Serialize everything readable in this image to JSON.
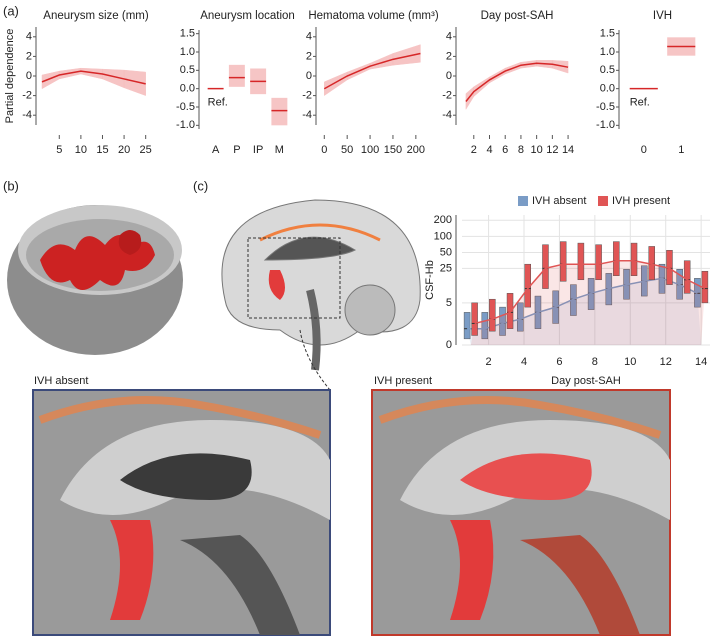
{
  "panel_labels": [
    "(a)",
    "(b)",
    "(c)"
  ],
  "images": {
    "left_title": "IVH absent",
    "right_title": "IVH present"
  },
  "chart_data": [
    {
      "type": "line",
      "title": "Aneurysm size (mm)",
      "ylabel": "Partial dependence",
      "color": "#d62728",
      "ribbon_color": "#f4b6b6",
      "x": [
        1,
        5,
        10,
        15,
        20,
        25
      ],
      "values": [
        -0.6,
        0.1,
        0.5,
        0.2,
        -0.3,
        -0.8
      ],
      "lower": [
        -1.3,
        -0.3,
        0.2,
        -0.3,
        -1.2,
        -2.0
      ],
      "upper": [
        0.1,
        0.5,
        0.8,
        0.7,
        0.6,
        0.4
      ],
      "xlim": [
        1,
        26
      ],
      "xticks": [
        5,
        10,
        15,
        20,
        25
      ],
      "ylim": [
        -5,
        5
      ],
      "yticks": [
        4,
        2,
        0,
        -2,
        -4
      ]
    },
    {
      "type": "crossbar",
      "title": "Aneurysm location",
      "annotation": "Ref.",
      "color": "#d62728",
      "ribbon_color": "#f4b6b6",
      "categories": [
        "A",
        "P",
        "IP",
        "M"
      ],
      "values": [
        0,
        0.3,
        0.2,
        -0.6
      ],
      "lower": [
        0,
        0.05,
        -0.15,
        -1.0
      ],
      "upper": [
        0,
        0.65,
        0.55,
        -0.25
      ],
      "ylim": [
        -1.1,
        1.6
      ],
      "yticks": [
        {
          "value": 1.5,
          "label": "1.5"
        },
        {
          "value": 1,
          "label": "1.0"
        },
        {
          "value": 0.5,
          "label": "0.5"
        },
        {
          "value": 0,
          "label": "0.0"
        },
        {
          "value": -0.5,
          "label": "-0.5"
        },
        {
          "value": -1,
          "label": "-1.0"
        }
      ]
    },
    {
      "type": "line",
      "title": "Hematoma volume (mm³)",
      "color": "#d62728",
      "ribbon_color": "#f4b6b6",
      "x": [
        0,
        50,
        100,
        150,
        210
      ],
      "values": [
        -1.3,
        0,
        1.0,
        1.7,
        2.3
      ],
      "lower": [
        -2.0,
        -0.4,
        0.7,
        1.1,
        1.4
      ],
      "upper": [
        -0.6,
        0.4,
        1.3,
        2.3,
        3.2
      ],
      "xlim": [
        -5,
        220
      ],
      "xticks": [
        0,
        50,
        100,
        150,
        200
      ],
      "ylim": [
        -5,
        5
      ],
      "yticks": [
        4,
        2,
        0,
        -2,
        -4
      ]
    },
    {
      "type": "line",
      "title": "Day post-SAH",
      "color": "#d62728",
      "ribbon_color": "#f4b6b6",
      "x": [
        1,
        2,
        4,
        6,
        8,
        10,
        12,
        14
      ],
      "values": [
        -2.6,
        -1.6,
        -0.4,
        0.5,
        1.1,
        1.3,
        1.2,
        0.9
      ],
      "lower": [
        -3.4,
        -2.1,
        -0.7,
        0.2,
        0.8,
        1.0,
        0.8,
        0.3
      ],
      "upper": [
        -1.8,
        -1.1,
        -0.1,
        0.8,
        1.4,
        1.6,
        1.6,
        1.5
      ],
      "xlim": [
        0.5,
        14.5
      ],
      "xticks": [
        2,
        4,
        6,
        8,
        10,
        12,
        14
      ],
      "ylim": [
        -5,
        5
      ],
      "yticks": [
        4,
        2,
        0,
        -2,
        -4
      ]
    },
    {
      "type": "crossbar",
      "title": "IVH",
      "annotation": "Ref.",
      "color": "#d62728",
      "ribbon_color": "#f4b6b6",
      "categories": [
        "0",
        "1"
      ],
      "values": [
        0,
        1.15
      ],
      "lower": [
        0,
        0.9
      ],
      "upper": [
        0,
        1.4
      ],
      "ylim": [
        -1.1,
        1.6
      ],
      "yticks": [
        {
          "value": 1.5,
          "label": "1.5"
        },
        {
          "value": 1,
          "label": "1.0"
        },
        {
          "value": 0.5,
          "label": "0.5"
        },
        {
          "value": 0,
          "label": "0.0"
        },
        {
          "value": -0.5,
          "label": "-0.5"
        },
        {
          "value": -1,
          "label": "-1.0"
        }
      ]
    },
    {
      "type": "box",
      "ylabel": "CSF-Hb",
      "xlabel": "Day post-SAH",
      "yscale": "log1p",
      "grid": true,
      "x": [
        1,
        2,
        3,
        4,
        5,
        6,
        7,
        8,
        9,
        10,
        11,
        12,
        13,
        14
      ],
      "xlim": [
        0.5,
        14.5
      ],
      "xticks": [
        2,
        4,
        6,
        8,
        10,
        12,
        14
      ],
      "ylim": [
        0,
        250
      ],
      "yticks": [
        0,
        5,
        25,
        50,
        100,
        200
      ],
      "series": [
        {
          "name": "IVH absent",
          "color": "#7a9cc6",
          "values": [
            1,
            1,
            1.5,
            2,
            3,
            4,
            6,
            8,
            10,
            12,
            14,
            16,
            12,
            8
          ],
          "q1": [
            0.3,
            0.3,
            0.5,
            0.8,
            1,
            1.5,
            2.5,
            3.5,
            4.5,
            6,
            7,
            8,
            6,
            4
          ],
          "q3": [
            3,
            3,
            4,
            5,
            7,
            9,
            12,
            16,
            20,
            24,
            28,
            30,
            24,
            16
          ]
        },
        {
          "name": "IVH present",
          "color": "#e05555",
          "values": [
            1.5,
            2,
            3,
            10,
            25,
            30,
            30,
            30,
            35,
            35,
            30,
            25,
            15,
            10
          ],
          "q1": [
            0.5,
            0.8,
            1,
            4,
            10,
            14,
            15,
            15,
            18,
            18,
            15,
            12,
            8,
            5
          ],
          "q3": [
            5,
            6,
            8,
            30,
            70,
            80,
            75,
            70,
            80,
            75,
            65,
            55,
            35,
            22
          ]
        }
      ]
    }
  ]
}
